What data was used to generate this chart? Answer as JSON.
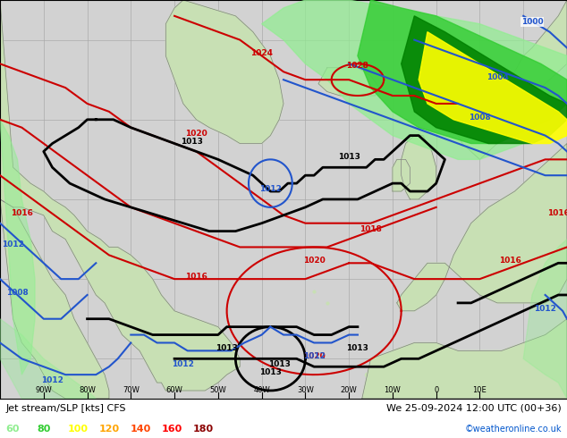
{
  "title_left": "Jet stream/SLP [kts] CFS",
  "title_right": "We 25-09-2024 12:00 UTC (00+36)",
  "credit": "©weatheronline.co.uk",
  "legend_values": [
    60,
    80,
    100,
    120,
    140,
    160,
    180
  ],
  "legend_colors": [
    "#90ee90",
    "#32cd32",
    "#ffff00",
    "#ffa500",
    "#ff4500",
    "#ff0000",
    "#8b0000"
  ],
  "ocean_color": "#d2d2d2",
  "land_color": "#c8e0b4",
  "land_outline": "#808080",
  "jet_light_green": "#90ee90",
  "jet_mid_green": "#32cd32",
  "jet_dark_green": "#008000",
  "jet_yellow": "#ffff00",
  "red_isobar": "#cc0000",
  "black_isobar": "#000000",
  "blue_isobar": "#2255cc",
  "grid_color": "#aaaaaa",
  "figsize": [
    6.34,
    4.9
  ],
  "dpi": 100
}
